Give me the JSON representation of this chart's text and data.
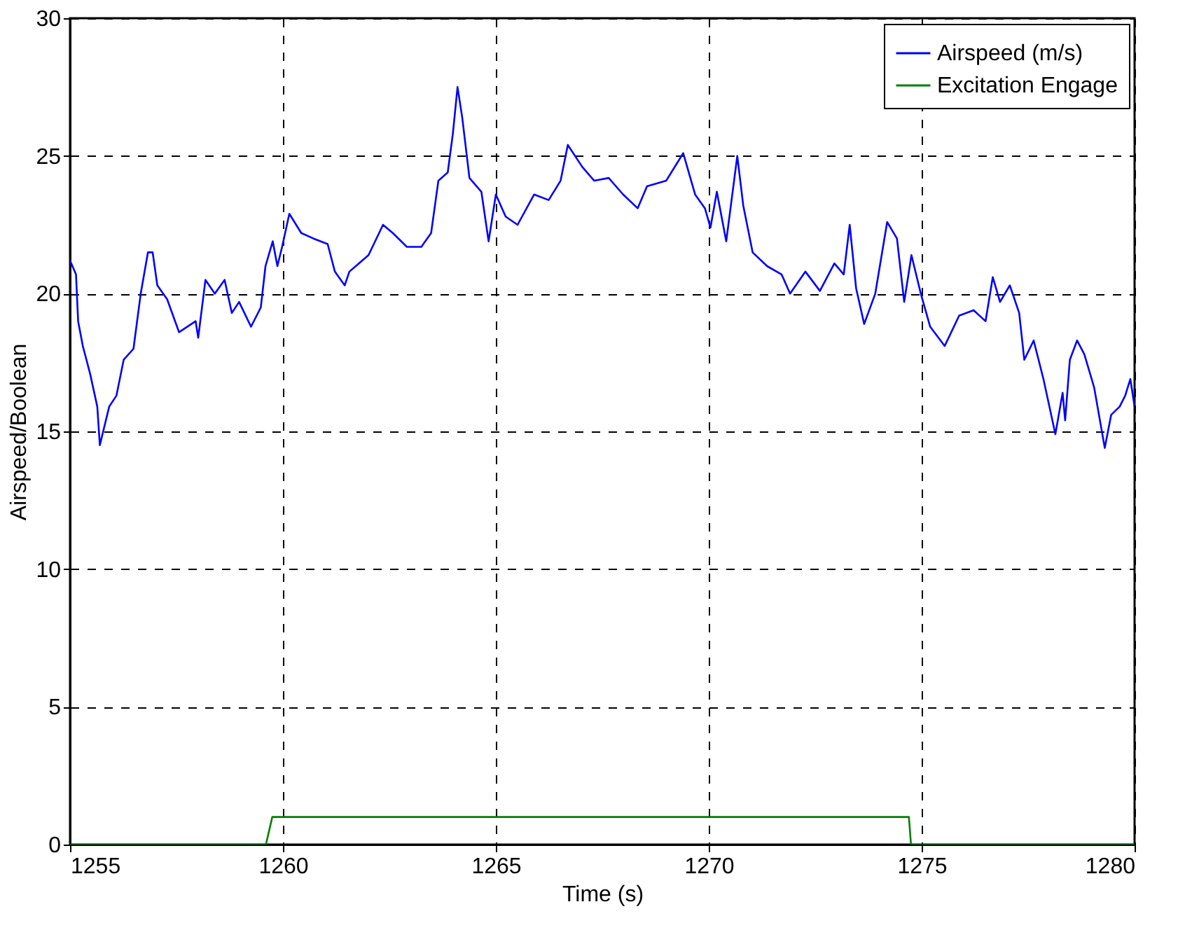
{
  "chart_data": {
    "type": "line",
    "xlabel": "Time (s)",
    "ylabel": "Airspeed/Boolean",
    "xlim": [
      1255,
      1280
    ],
    "ylim": [
      0,
      30
    ],
    "xticks": [
      1255,
      1260,
      1265,
      1270,
      1275,
      1280
    ],
    "yticks": [
      0,
      5,
      10,
      15,
      20,
      25,
      30
    ],
    "grid": true,
    "legend": "top right",
    "marker": "none",
    "line_style": "solid",
    "series": [
      {
        "name": "Airspeed (m/s)",
        "color": "#0000ff",
        "x": [
          1255.0,
          1255.14,
          1255.19,
          1255.3,
          1255.47,
          1255.64,
          1255.7,
          1255.92,
          1256.09,
          1256.26,
          1256.49,
          1256.66,
          1256.83,
          1256.94,
          1257.05,
          1257.28,
          1257.56,
          1257.95,
          1258.01,
          1258.18,
          1258.4,
          1258.63,
          1258.8,
          1258.97,
          1259.25,
          1259.48,
          1259.59,
          1259.76,
          1259.87,
          1259.98,
          1260.15,
          1260.43,
          1260.72,
          1261.05,
          1261.22,
          1261.45,
          1261.56,
          1262.01,
          1262.35,
          1262.58,
          1262.91,
          1263.25,
          1263.48,
          1263.65,
          1263.87,
          1263.99,
          1264.1,
          1264.21,
          1264.38,
          1264.66,
          1264.83,
          1265.0,
          1265.23,
          1265.51,
          1265.9,
          1266.24,
          1266.52,
          1266.69,
          1267.03,
          1267.31,
          1267.65,
          1267.99,
          1268.33,
          1268.55,
          1269.0,
          1269.4,
          1269.68,
          1269.91,
          1270.04,
          1270.19,
          1270.41,
          1270.67,
          1270.81,
          1271.03,
          1271.37,
          1271.71,
          1271.91,
          1272.27,
          1272.61,
          1272.95,
          1273.17,
          1273.31,
          1273.46,
          1273.65,
          1273.91,
          1274.19,
          1274.42,
          1274.59,
          1274.76,
          1274.98,
          1275.2,
          1275.54,
          1275.88,
          1276.22,
          1276.5,
          1276.67,
          1276.84,
          1277.07,
          1277.29,
          1277.41,
          1277.63,
          1277.86,
          1278.14,
          1278.31,
          1278.37,
          1278.48,
          1278.65,
          1278.82,
          1279.05,
          1279.3,
          1279.45,
          1279.65,
          1279.78,
          1279.9,
          1280.0
        ],
        "values": [
          21.2,
          20.7,
          19.0,
          18.1,
          17.1,
          15.9,
          14.5,
          15.9,
          16.3,
          17.6,
          18.0,
          20.0,
          21.5,
          21.5,
          20.3,
          19.8,
          18.6,
          19.0,
          18.4,
          20.5,
          20.0,
          20.5,
          19.3,
          19.7,
          18.8,
          19.5,
          21.0,
          21.9,
          21.0,
          21.7,
          22.9,
          22.2,
          22.0,
          21.8,
          20.8,
          20.3,
          20.8,
          21.4,
          22.5,
          22.2,
          21.7,
          21.7,
          22.2,
          24.1,
          24.4,
          25.8,
          27.5,
          26.4,
          24.2,
          23.7,
          21.9,
          23.6,
          22.8,
          22.5,
          23.6,
          23.4,
          24.1,
          25.4,
          24.6,
          24.1,
          24.2,
          23.6,
          23.1,
          23.9,
          24.1,
          25.1,
          23.6,
          23.1,
          22.4,
          23.7,
          21.9,
          25.0,
          23.2,
          21.5,
          21.0,
          20.7,
          20.0,
          20.8,
          20.1,
          21.1,
          20.7,
          22.5,
          20.2,
          18.9,
          20.0,
          22.6,
          22.0,
          19.7,
          21.4,
          20.0,
          18.8,
          18.1,
          19.2,
          19.4,
          19.0,
          20.6,
          19.7,
          20.3,
          19.3,
          17.6,
          18.3,
          16.9,
          14.9,
          16.4,
          15.4,
          17.6,
          18.3,
          17.8,
          16.6,
          14.4,
          15.6,
          15.9,
          16.3,
          16.9,
          15.9
        ]
      },
      {
        "name": "Excitation Engage",
        "color": "#008000",
        "x": [
          1255,
          1259.6,
          1259.75,
          1274.7,
          1274.75,
          1280
        ],
        "values": [
          0,
          0,
          1,
          1,
          0,
          0
        ]
      }
    ]
  }
}
